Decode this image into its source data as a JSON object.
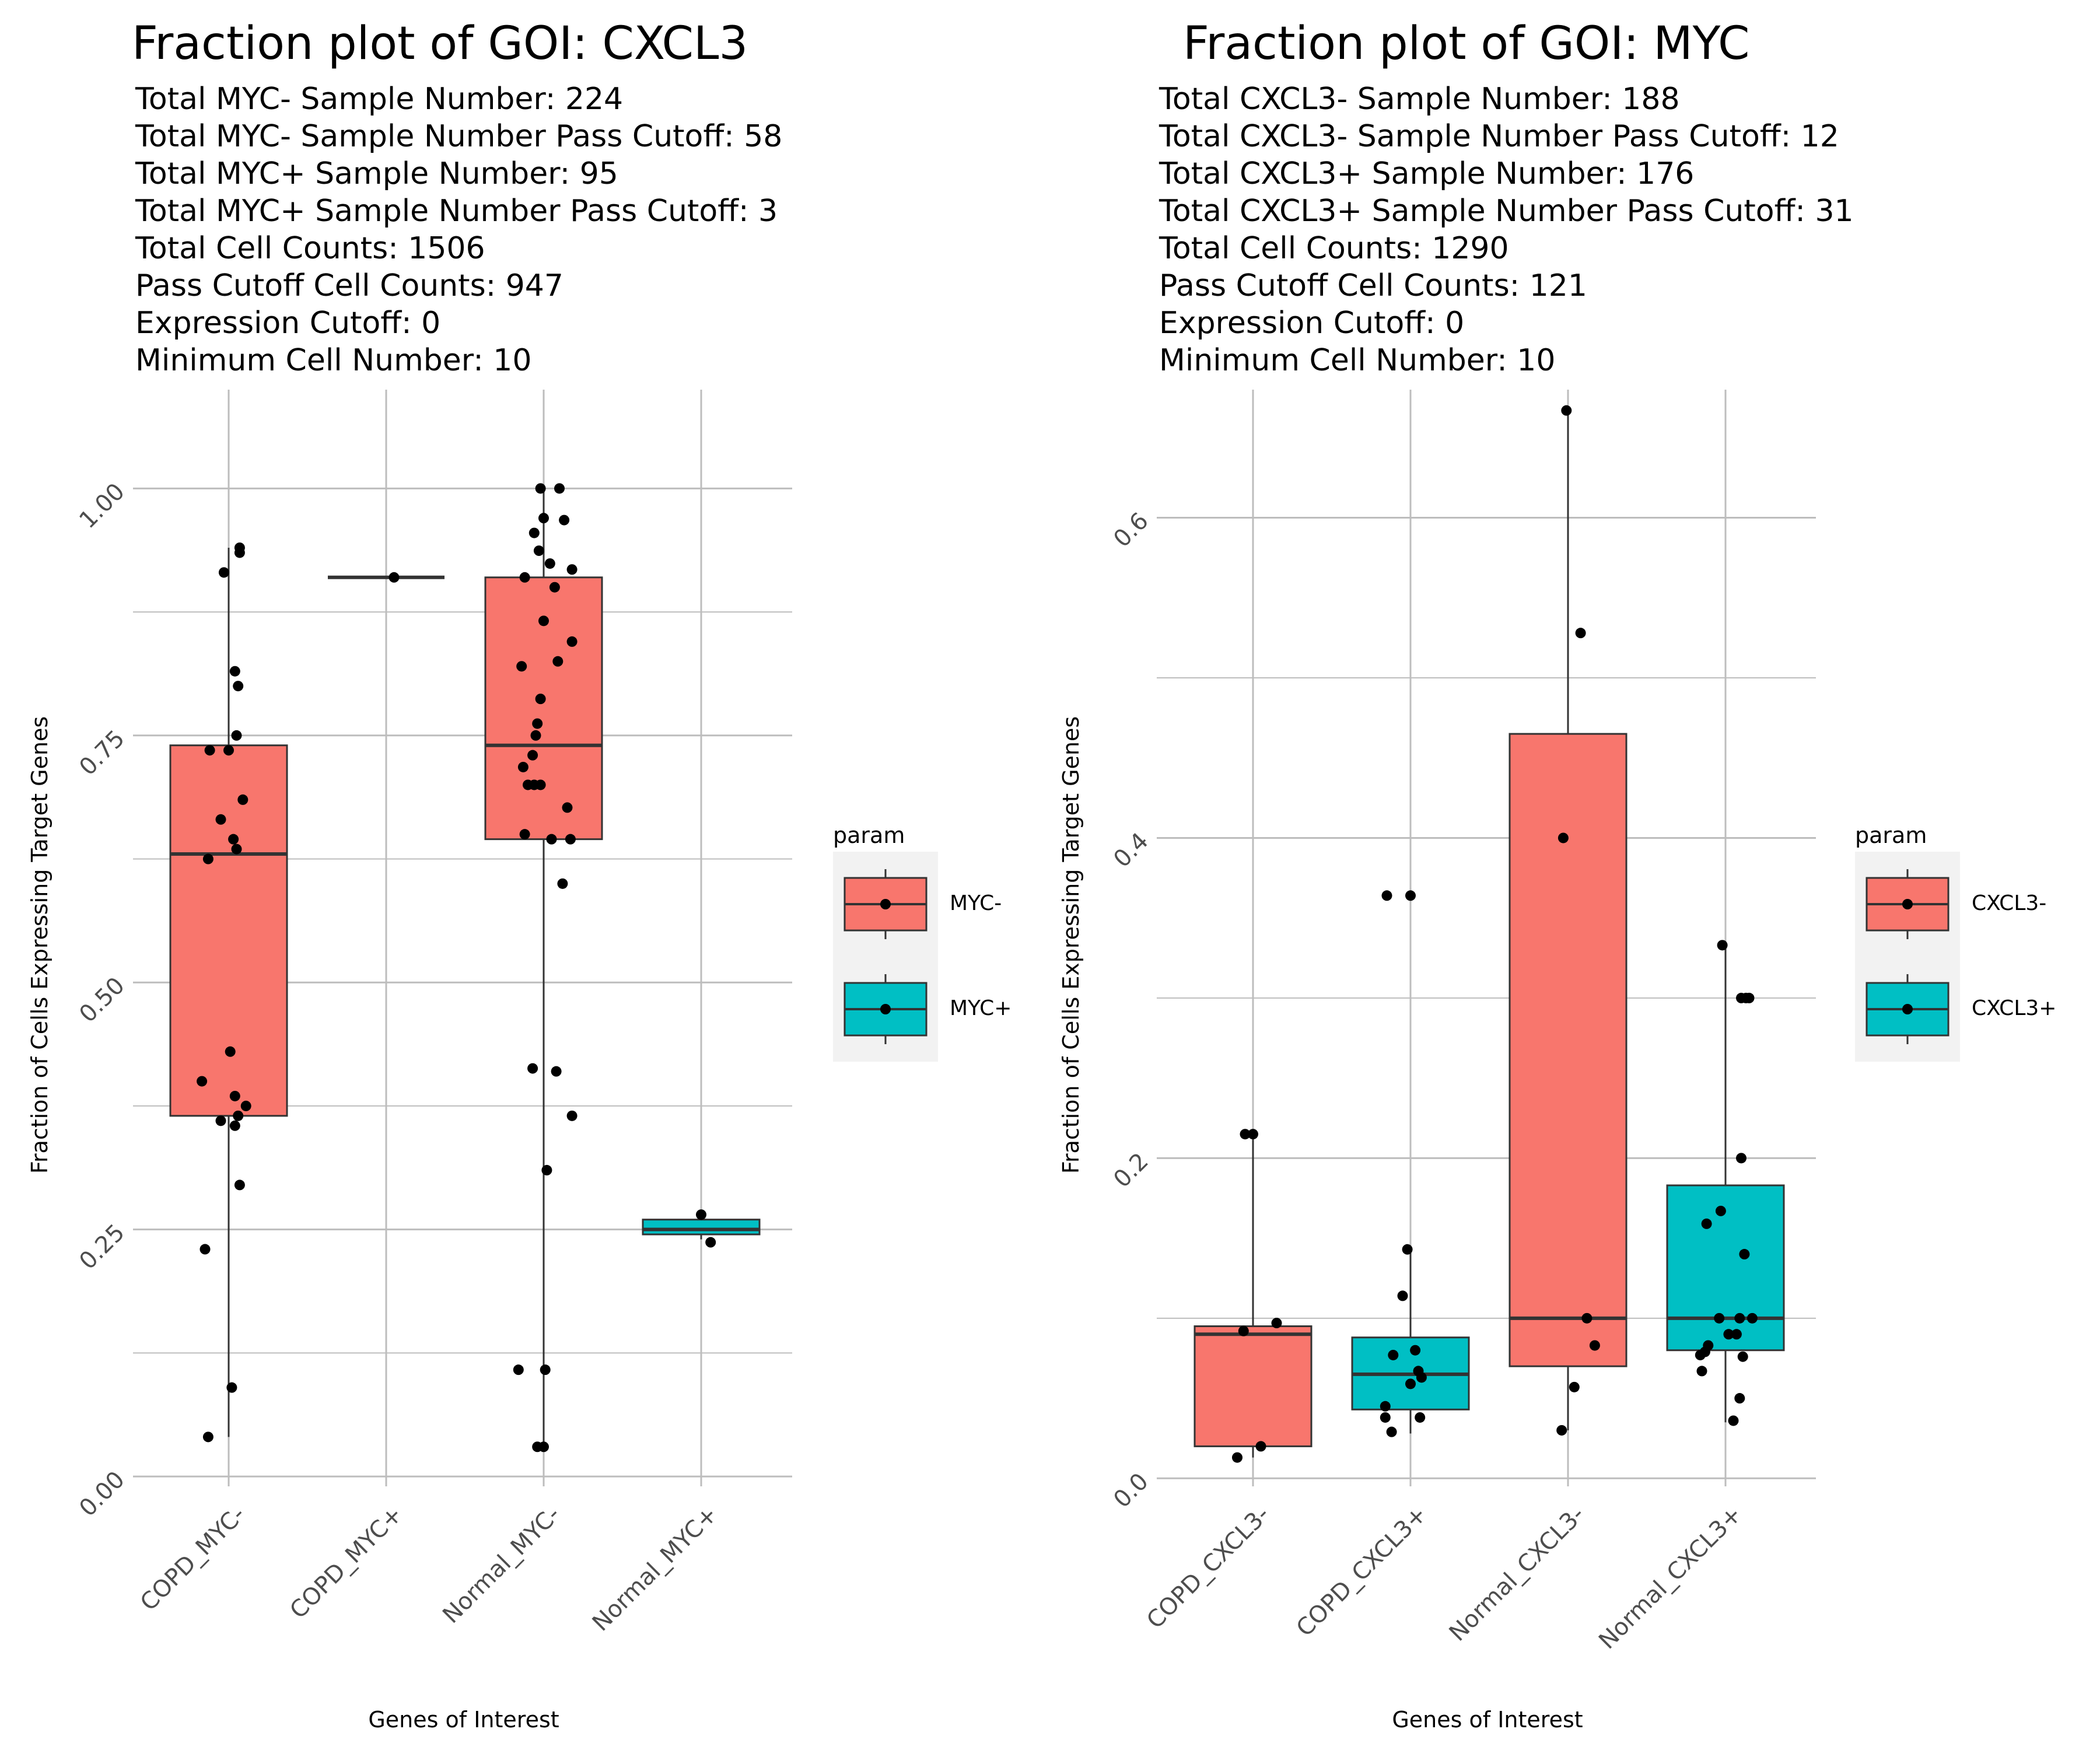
{
  "colors": {
    "series_a": "#F8766D",
    "series_b": "#00BFC4",
    "grid": "#bdbdbd",
    "box_stroke": "#333333",
    "tick_text": "#4d4d4d"
  },
  "panels": [
    {
      "title": "Fraction plot of GOI: CXCL3",
      "stats": [
        "Total MYC- Sample Number: 224",
        "Total MYC- Sample Number Pass Cutoff: 58",
        "Total MYC+ Sample Number: 95",
        "Total MYC+ Sample Number Pass Cutoff: 3",
        "Total Cell Counts: 1506",
        "Pass Cutoff Cell Counts: 947",
        "Expression Cutoff: 0",
        "Minimum Cell Number: 10"
      ],
      "legend": {
        "title": "param",
        "items": [
          {
            "label": "MYC-",
            "color": "#F8766D"
          },
          {
            "label": "MYC+",
            "color": "#00BFC4"
          }
        ]
      }
    },
    {
      "title": "Fraction plot of GOI: MYC",
      "stats": [
        "Total CXCL3- Sample Number: 188",
        "Total CXCL3- Sample Number Pass Cutoff: 12",
        "Total CXCL3+ Sample Number: 176",
        "Total CXCL3+ Sample Number Pass Cutoff: 31",
        "Total Cell Counts: 1290",
        "Pass Cutoff Cell Counts: 121",
        "Expression Cutoff: 0",
        "Minimum Cell Number: 10"
      ],
      "legend": {
        "title": "param",
        "items": [
          {
            "label": "CXCL3-",
            "color": "#F8766D"
          },
          {
            "label": "CXCL3+",
            "color": "#00BFC4"
          }
        ]
      }
    }
  ],
  "chart_data": [
    {
      "type": "box",
      "title": "Fraction plot of GOI: CXCL3",
      "xlabel": "Genes of Interest",
      "ylabel": "Fraction of Cells Expressing Target Genes",
      "ylim": [
        -0.01,
        1.1
      ],
      "yticks": [
        0,
        0.25,
        0.5,
        0.75,
        1.0
      ],
      "ytick_labels": [
        "0.00",
        "0.25",
        "0.50",
        "0.75",
        "1.00"
      ],
      "categories": [
        "COPD_MYC-",
        "COPD_MYC+",
        "Normal_MYC-",
        "Normal_MYC+"
      ],
      "grid": true,
      "legend_position": "right",
      "boxes": [
        {
          "category": "COPD_MYC-",
          "series": "MYC-",
          "q1": 0.365,
          "median": 0.63,
          "q3": 0.74,
          "whisker_low": 0.04,
          "whisker_high": 0.94
        },
        {
          "category": "COPD_MYC+",
          "series": "MYC+",
          "q1": 0.91,
          "median": 0.91,
          "q3": 0.91,
          "whisker_low": 0.91,
          "whisker_high": 0.91
        },
        {
          "category": "Normal_MYC-",
          "series": "MYC-",
          "q1": 0.645,
          "median": 0.74,
          "q3": 0.91,
          "whisker_low": 0.03,
          "whisker_high": 1.0
        },
        {
          "category": "Normal_MYC+",
          "series": "MYC+",
          "q1": 0.245,
          "median": 0.25,
          "q3": 0.26,
          "whisker_low": 0.24,
          "whisker_high": 0.265
        }
      ],
      "points": [
        [
          -0.03,
          0.915
        ],
        [
          0.07,
          0.94
        ],
        [
          0.07,
          0.935
        ],
        [
          0.04,
          0.815
        ],
        [
          0.06,
          0.8
        ],
        [
          0.05,
          0.75
        ],
        [
          -0.12,
          0.735
        ],
        [
          0.0,
          0.735
        ],
        [
          0.09,
          0.685
        ],
        [
          -0.05,
          0.665
        ],
        [
          0.03,
          0.645
        ],
        [
          0.05,
          0.635
        ],
        [
          -0.13,
          0.625
        ],
        [
          0.01,
          0.43
        ],
        [
          -0.17,
          0.4
        ],
        [
          0.04,
          0.385
        ],
        [
          0.11,
          0.375
        ],
        [
          0.06,
          0.365
        ],
        [
          -0.05,
          0.36
        ],
        [
          0.04,
          0.355
        ],
        [
          0.07,
          0.295
        ],
        [
          -0.15,
          0.23
        ],
        [
          0.02,
          0.09
        ],
        [
          -0.13,
          0.04
        ],
        [
          1.05,
          0.91
        ],
        [
          1.98,
          1.0
        ],
        [
          2.1,
          1.0
        ],
        [
          2.0,
          0.97
        ],
        [
          2.13,
          0.968
        ],
        [
          1.94,
          0.955
        ],
        [
          1.97,
          0.937
        ],
        [
          2.04,
          0.924
        ],
        [
          2.18,
          0.918
        ],
        [
          1.88,
          0.91
        ],
        [
          2.07,
          0.9
        ],
        [
          2.0,
          0.866
        ],
        [
          2.18,
          0.845
        ],
        [
          2.09,
          0.825
        ],
        [
          1.86,
          0.82
        ],
        [
          1.98,
          0.787
        ],
        [
          1.96,
          0.762
        ],
        [
          1.95,
          0.75
        ],
        [
          1.93,
          0.73
        ],
        [
          1.87,
          0.718
        ],
        [
          1.9,
          0.7
        ],
        [
          1.94,
          0.7
        ],
        [
          1.98,
          0.7
        ],
        [
          2.15,
          0.677
        ],
        [
          1.88,
          0.65
        ],
        [
          2.05,
          0.645
        ],
        [
          2.17,
          0.645
        ],
        [
          2.12,
          0.6
        ],
        [
          1.93,
          0.413
        ],
        [
          2.08,
          0.41
        ],
        [
          2.18,
          0.365
        ],
        [
          2.02,
          0.31
        ],
        [
          1.84,
          0.108
        ],
        [
          2.01,
          0.108
        ],
        [
          1.96,
          0.03
        ],
        [
          2.0,
          0.03
        ],
        [
          3.0,
          0.265
        ],
        [
          3.06,
          0.237
        ]
      ]
    },
    {
      "type": "box",
      "title": "Fraction plot of GOI: MYC",
      "xlabel": "Genes of Interest",
      "ylabel": "Fraction of Cells Expressing Target Genes",
      "ylim": [
        -0.005,
        0.68
      ],
      "yticks": [
        0.0,
        0.2,
        0.4,
        0.6
      ],
      "ytick_labels": [
        "0.0",
        "0.2",
        "0.4",
        "0.6"
      ],
      "categories": [
        "COPD_CXCL3-",
        "COPD_CXCL3+",
        "Normal_CXCL3-",
        "Normal_CXCL3+"
      ],
      "grid": true,
      "legend_position": "right",
      "boxes": [
        {
          "category": "COPD_CXCL3-",
          "series": "CXCL3-",
          "q1": 0.02,
          "median": 0.09,
          "q3": 0.095,
          "whisker_low": 0.013,
          "whisker_high": 0.215
        },
        {
          "category": "COPD_CXCL3+",
          "series": "CXCL3+",
          "q1": 0.043,
          "median": 0.065,
          "q3": 0.088,
          "whisker_low": 0.028,
          "whisker_high": 0.143
        },
        {
          "category": "Normal_CXCL3-",
          "series": "CXCL3-",
          "q1": 0.07,
          "median": 0.1,
          "q3": 0.465,
          "whisker_low": 0.03,
          "whisker_high": 0.667
        },
        {
          "category": "Normal_CXCL3+",
          "series": "CXCL3+",
          "q1": 0.08,
          "median": 0.1,
          "q3": 0.183,
          "whisker_low": 0.035,
          "whisker_high": 0.333
        }
      ],
      "points": [
        [
          -0.05,
          0.215
        ],
        [
          0.0,
          0.215
        ],
        [
          -0.06,
          0.092
        ],
        [
          0.15,
          0.097
        ],
        [
          0.05,
          0.02
        ],
        [
          -0.1,
          0.013
        ],
        [
          0.85,
          0.364
        ],
        [
          1.0,
          0.364
        ],
        [
          0.98,
          0.143
        ],
        [
          0.95,
          0.114
        ],
        [
          0.89,
          0.077
        ],
        [
          1.03,
          0.08
        ],
        [
          1.05,
          0.067
        ],
        [
          1.07,
          0.063
        ],
        [
          1.0,
          0.059
        ],
        [
          0.84,
          0.045
        ],
        [
          0.84,
          0.038
        ],
        [
          1.06,
          0.038
        ],
        [
          0.88,
          0.029
        ],
        [
          1.99,
          0.667
        ],
        [
          2.08,
          0.528
        ],
        [
          1.97,
          0.4
        ],
        [
          2.12,
          0.1
        ],
        [
          2.17,
          0.083
        ],
        [
          2.04,
          0.057
        ],
        [
          1.96,
          0.03
        ],
        [
          2.98,
          0.333
        ],
        [
          3.1,
          0.3
        ],
        [
          3.13,
          0.3
        ],
        [
          3.15,
          0.3
        ],
        [
          3.1,
          0.2
        ],
        [
          2.97,
          0.167
        ],
        [
          2.88,
          0.159
        ],
        [
          3.12,
          0.14
        ],
        [
          2.96,
          0.1
        ],
        [
          3.09,
          0.1
        ],
        [
          3.17,
          0.1
        ],
        [
          3.02,
          0.09
        ],
        [
          3.07,
          0.09
        ],
        [
          2.87,
          0.079
        ],
        [
          3.11,
          0.076
        ],
        [
          2.84,
          0.077
        ],
        [
          2.89,
          0.083
        ],
        [
          2.85,
          0.067
        ],
        [
          3.09,
          0.05
        ],
        [
          3.05,
          0.036
        ]
      ]
    }
  ]
}
